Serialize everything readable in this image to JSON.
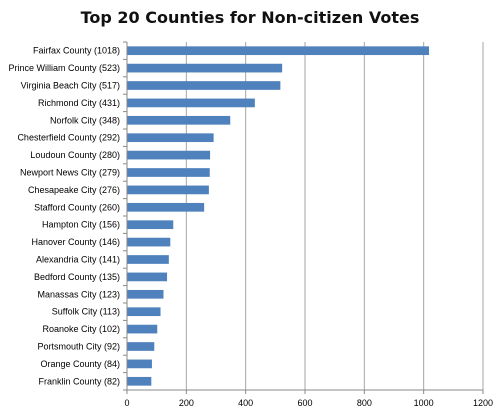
{
  "chart_data": {
    "type": "bar",
    "orientation": "horizontal",
    "title": "Top 20 Counties for Non-citizen Votes",
    "xlabel": "",
    "ylabel": "",
    "xlim": [
      0,
      1200
    ],
    "x_ticks": [
      0,
      200,
      400,
      600,
      800,
      1000,
      1200
    ],
    "grid": true,
    "legend": "none",
    "bar_color": "#4F81BD",
    "categories": [
      "Fairfax County (1018)",
      "Prince William County (523)",
      "Virginia Beach City (517)",
      "Richmond City (431)",
      "Norfolk City (348)",
      "Chesterfield County (292)",
      "Loudoun County (280)",
      "Newport News City (279)",
      "Chesapeake City (276)",
      "Stafford County (260)",
      "Hampton City (156)",
      "Hanover County (146)",
      "Alexandria City (141)",
      "Bedford County (135)",
      "Manassas City (123)",
      "Suffolk City (113)",
      "Roanoke City (102)",
      "Portsmouth City (92)",
      "Orange County (84)",
      "Franklin County (82)"
    ],
    "values": [
      1018,
      523,
      517,
      431,
      348,
      292,
      280,
      279,
      276,
      260,
      156,
      146,
      141,
      135,
      123,
      113,
      102,
      92,
      84,
      82
    ]
  }
}
